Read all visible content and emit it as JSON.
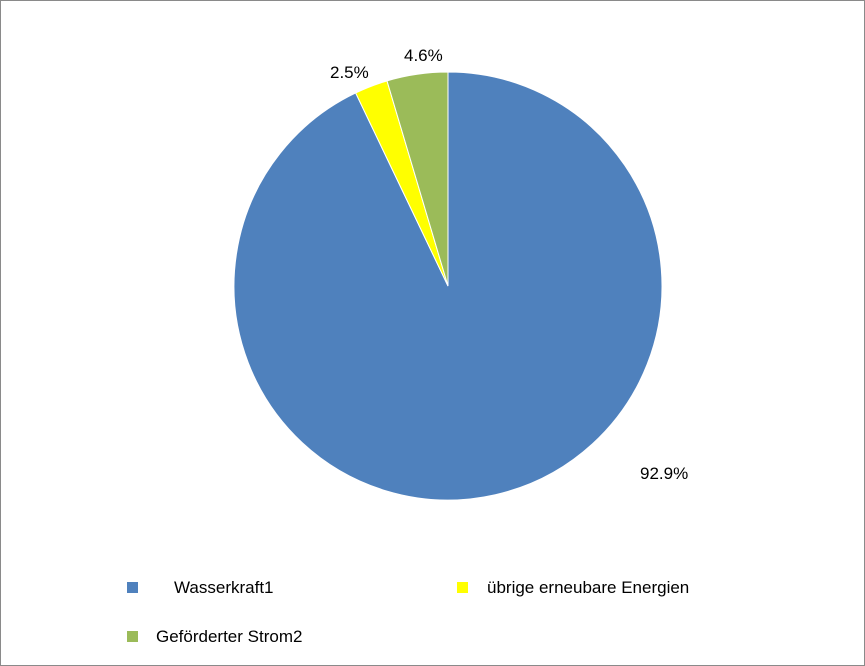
{
  "chart_data": {
    "type": "pie",
    "categories": [
      "Wasserkraft1",
      "übrige erneubare Energien",
      "Geförderter Strom2"
    ],
    "values": [
      92.9,
      2.5,
      4.6
    ],
    "labels": [
      "92.9%",
      "2.5%",
      "4.6%"
    ],
    "colors": [
      "#4f81bd",
      "#ffff00",
      "#9bbb59"
    ],
    "start_angle_deg": 0,
    "direction": "clockwise",
    "legend_position": "bottom"
  },
  "legend": {
    "items": [
      {
        "label": "Wasserkraft1",
        "color": "#4f81bd"
      },
      {
        "label": "übrige erneubare Energien",
        "color": "#ffff00"
      },
      {
        "label": "Geförderter Strom2",
        "color": "#9bbb59"
      }
    ]
  }
}
